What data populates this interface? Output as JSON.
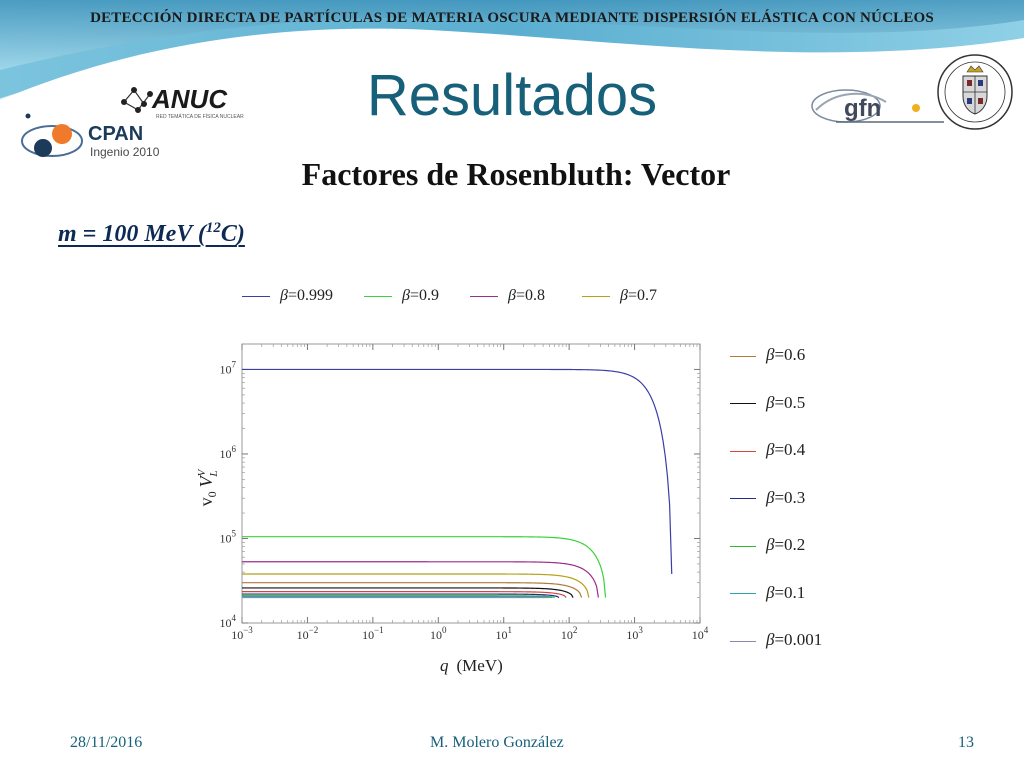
{
  "slide": {
    "header": "DETECCIÓN DIRECTA DE PARTÍCULAS DE MATERIA OSCURA MEDIANTE DISPERSIÓN ELÁSTICA CON NÚCLEOS",
    "title": "Resultados",
    "subtitle": "Factores de Rosenbluth: Vector",
    "mass_label": "m = 100 MeV (",
    "mass_sup": "12",
    "mass_element": "C",
    "mass_close": ")",
    "footer_date": "28/11/2016",
    "footer_author": "M. Molero González",
    "footer_page": "13"
  },
  "logos": {
    "anuc_text": "ANUC",
    "anuc_sub": "RED TEMÁTICA DE FÍSICA NUCLEAR",
    "cpan_text": "CPAN",
    "cpan_sub": "Ingenio 2010",
    "gfn_text": "gfn"
  },
  "chart_data": {
    "type": "line",
    "xlabel_var": "q",
    "xlabel_unit": "(MeV)",
    "ylabel": "v0 V_L^V",
    "ylabel_main": "v",
    "ylabel_sub0": "0",
    "ylabel_V": "V",
    "ylabel_sup": "V",
    "ylabel_subL": "L",
    "x_scale": "log",
    "y_scale": "log",
    "xlim": [
      0.001,
      10000
    ],
    "ylim": [
      10000,
      20000000
    ],
    "x_ticks": [
      {
        "base": "10",
        "exp": "−3",
        "value": 0.001
      },
      {
        "base": "10",
        "exp": "−2",
        "value": 0.01
      },
      {
        "base": "10",
        "exp": "−1",
        "value": 0.1
      },
      {
        "base": "10",
        "exp": "0",
        "value": 1
      },
      {
        "base": "10",
        "exp": "1",
        "value": 10
      },
      {
        "base": "10",
        "exp": "2",
        "value": 100
      },
      {
        "base": "10",
        "exp": "3",
        "value": 1000
      },
      {
        "base": "10",
        "exp": "4",
        "value": 10000
      }
    ],
    "y_ticks": [
      {
        "base": "10",
        "exp": "4",
        "value": 10000
      },
      {
        "base": "10",
        "exp": "5",
        "value": 100000
      },
      {
        "base": "10",
        "exp": "6",
        "value": 1000000
      },
      {
        "base": "10",
        "exp": "7",
        "value": 10000000
      }
    ],
    "legend_top": [
      0,
      1,
      2,
      3
    ],
    "legend_right": [
      4,
      5,
      6,
      7,
      8,
      9,
      10
    ],
    "series": [
      {
        "name": "β=0.999",
        "beta": "0.999",
        "color": "#3a3fa8",
        "plateau": 10000000,
        "q_max": 3700,
        "end_value": 38000
      },
      {
        "name": "β=0.9",
        "beta": "0.9",
        "color": "#3ad23a",
        "plateau": 105000,
        "q_max": 360,
        "end_value": 20000
      },
      {
        "name": "β=0.8",
        "beta": "0.8",
        "color": "#9b2d8e",
        "plateau": 53000,
        "q_max": 280,
        "end_value": 20000
      },
      {
        "name": "β=0.7",
        "beta": "0.7",
        "color": "#b5a017",
        "plateau": 38000,
        "q_max": 200,
        "end_value": 20000
      },
      {
        "name": "β=0.6",
        "beta": "0.6",
        "color": "#b07a3a",
        "plateau": 30000,
        "q_max": 155,
        "end_value": 20000
      },
      {
        "name": "β=0.5",
        "beta": "0.5",
        "color": "#111111",
        "plateau": 26000,
        "q_max": 115,
        "end_value": 20000
      },
      {
        "name": "β=0.4",
        "beta": "0.4",
        "color": "#d2453f",
        "plateau": 23500,
        "q_max": 90,
        "end_value": 20000
      },
      {
        "name": "β=0.3",
        "beta": "0.3",
        "color": "#1f2d8c",
        "plateau": 22000,
        "q_max": 70,
        "end_value": 20000
      },
      {
        "name": "β=0.2",
        "beta": "0.2",
        "color": "#2fb82f",
        "plateau": 21000,
        "q_max": 60,
        "end_value": 20000
      },
      {
        "name": "β=0.1",
        "beta": "0.1",
        "color": "#2aa6a6",
        "plateau": 20500,
        "q_max": 55,
        "end_value": 20000
      },
      {
        "name": "β=0.001",
        "beta": "0.001",
        "color": "#8a8aaa",
        "plateau": 20000,
        "q_max": 50,
        "end_value": 20000
      }
    ]
  }
}
